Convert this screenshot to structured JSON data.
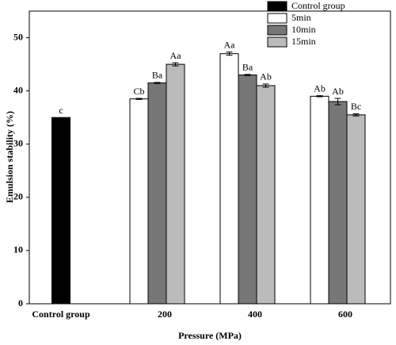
{
  "chart_data": {
    "type": "bar",
    "x_label": "Pressure (MPa)",
    "y_label": "Emulsion stability (%)",
    "categories": [
      "Control group",
      "200",
      "400",
      "600"
    ],
    "ylim": [
      0,
      55
    ],
    "yticks": [
      0,
      10,
      20,
      30,
      40,
      50
    ],
    "series": [
      {
        "name": "Control group",
        "color": "#000000",
        "values": [
          35,
          null,
          null,
          null
        ],
        "errors": [
          null,
          null,
          null,
          null
        ],
        "value_labels": [
          "c",
          null,
          null,
          null
        ]
      },
      {
        "name": "5min",
        "color": "#ffffff",
        "values": [
          null,
          38.5,
          47,
          39
        ],
        "errors": [
          null,
          0.1,
          0.3,
          0.1
        ],
        "value_labels": [
          null,
          "Cb",
          "Aa",
          "Ab"
        ]
      },
      {
        "name": "10min",
        "color": "#777777",
        "values": [
          null,
          41.5,
          43,
          38
        ],
        "errors": [
          null,
          0.1,
          0.1,
          0.6
        ],
        "value_labels": [
          null,
          "Ba",
          "Ba",
          "Ab"
        ]
      },
      {
        "name": "15min",
        "color": "#bbbbbb",
        "values": [
          null,
          45,
          41,
          35.5
        ],
        "errors": [
          null,
          0.3,
          0.3,
          0.2
        ],
        "value_labels": [
          null,
          "Aa",
          "Ab",
          "Bc"
        ]
      }
    ]
  }
}
